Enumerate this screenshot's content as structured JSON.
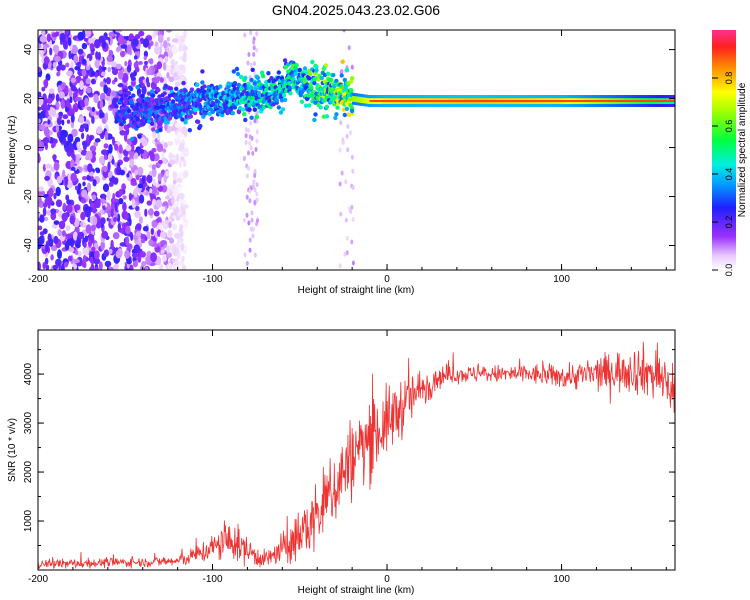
{
  "title": "GN04.2025.043.23.02.G06",
  "colors": {
    "line": "#ee3333",
    "frame": "#000000",
    "background": "#ffffff"
  },
  "chart_data": [
    {
      "type": "heatmap",
      "xlabel": "Height of straight line (km)",
      "ylabel": "Frequency (Hz)",
      "xlim": [
        -200,
        165
      ],
      "ylim": [
        -50,
        48
      ],
      "x_ticks": [
        "-200",
        "-100",
        "0",
        "100"
      ],
      "x_tick_values": [
        -200,
        -100,
        0,
        100
      ],
      "y_ticks": [
        "40",
        "20",
        "0",
        "-20",
        "-40"
      ],
      "y_tick_values": [
        40,
        20,
        0,
        -20,
        -40
      ],
      "colorbar": {
        "label": "Normalized spectral amplitude",
        "range": [
          0,
          1
        ],
        "ticks": [
          "0.0",
          "0.2",
          "0.4",
          "0.6",
          "0.8"
        ],
        "tick_values": [
          0,
          0.2,
          0.4,
          0.6,
          0.8
        ],
        "colormap": "rainbow (purple-blue-cyan-green-yellow-orange-red)"
      },
      "ridge": {
        "description": "signal ridge frequency vs height",
        "x": [
          -155,
          -130,
          -110,
          -90,
          -80,
          -70,
          -60,
          -55,
          -50,
          -40,
          -30,
          -20,
          -10,
          0,
          50,
          100,
          165
        ],
        "y": [
          14,
          16,
          18,
          20,
          21,
          22,
          24,
          30,
          26,
          24,
          22,
          20,
          19,
          19,
          19,
          19,
          19
        ],
        "peak_amplitude": [
          0.3,
          0.35,
          0.4,
          0.45,
          0.5,
          0.5,
          0.5,
          0.55,
          0.55,
          0.6,
          0.7,
          0.8,
          0.9,
          0.95,
          1.0,
          0.95,
          0.6
        ]
      },
      "noise_region": {
        "x_range": [
          -200,
          -115
        ],
        "level": 0.2
      }
    },
    {
      "type": "line",
      "xlabel": "Height of straight line (km)",
      "ylabel": "SNR (10 * v/v)",
      "xlim": [
        -200,
        165
      ],
      "ylim": [
        0,
        4900
      ],
      "x_ticks": [
        "-200",
        "-100",
        "0",
        "100"
      ],
      "x_tick_values": [
        -200,
        -100,
        0,
        100
      ],
      "y_ticks": [
        "1000",
        "2000",
        "3000",
        "4000"
      ],
      "y_tick_values": [
        1000,
        2000,
        3000,
        4000
      ],
      "series": [
        {
          "x": [
            -200,
            -180,
            -160,
            -140,
            -120,
            -110,
            -100,
            -90,
            -80,
            -70,
            -60,
            -50,
            -40,
            -30,
            -20,
            -10,
            0,
            10,
            20,
            30,
            40,
            60,
            80,
            100,
            120,
            140,
            150,
            165
          ],
          "values": [
            120,
            130,
            150,
            160,
            180,
            300,
            450,
            600,
            400,
            200,
            400,
            700,
            1100,
            1700,
            2300,
            2700,
            3000,
            3400,
            3700,
            3950,
            4000,
            4000,
            4000,
            3950,
            4000,
            4100,
            4050,
            3700
          ],
          "spread": [
            80,
            80,
            80,
            80,
            100,
            150,
            250,
            350,
            250,
            150,
            300,
            450,
            600,
            700,
            700,
            700,
            600,
            500,
            350,
            200,
            150,
            150,
            180,
            200,
            300,
            400,
            450,
            500
          ]
        }
      ]
    }
  ]
}
